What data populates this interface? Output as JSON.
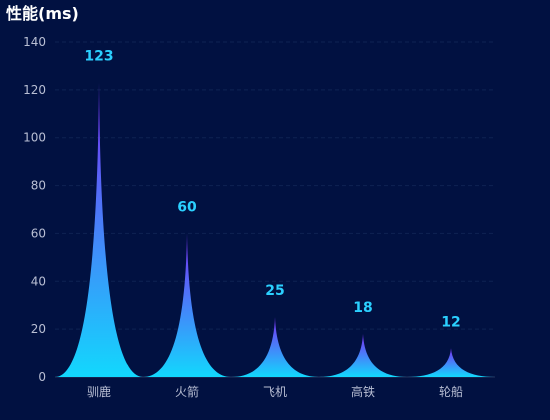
{
  "chart_data": {
    "type": "bar",
    "title": "性能(ms)",
    "categories": [
      "驯鹿",
      "火箭",
      "飞机",
      "高铁",
      "轮船"
    ],
    "values": [
      123,
      60,
      25,
      18,
      12
    ],
    "ylim": [
      0,
      140
    ],
    "yticks": [
      0,
      20,
      40,
      60,
      80,
      100,
      120,
      140
    ],
    "grid": true,
    "bar_style": "pictorial spike",
    "colors": {
      "background": "#011141",
      "gradient_top": "#7b2cf5",
      "gradient_bottom": "#12d8fd",
      "data_label": "#2bd0ff",
      "tick_label": "#b9bfd4",
      "gridline": "#0f2353",
      "title": "#ffffff"
    }
  }
}
